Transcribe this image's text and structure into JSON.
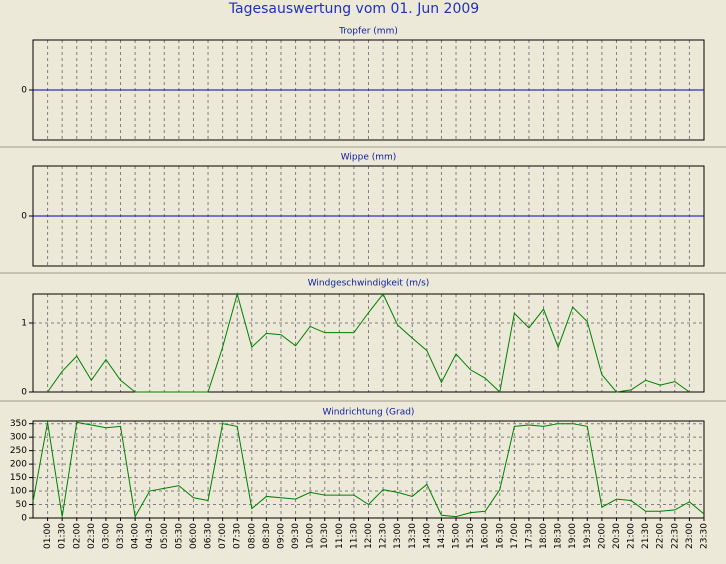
{
  "title": "Tagesauswertung vom 01. Jun 2009",
  "chart_data": [
    {
      "type": "line",
      "title": "Tropfer (mm)",
      "ylim": [
        -1,
        1
      ],
      "yticks": [
        0
      ],
      "grid": true,
      "series": [
        {
          "color": "#0000c8",
          "values": [
            0,
            0,
            0,
            0,
            0,
            0,
            0,
            0,
            0,
            0,
            0,
            0,
            0,
            0,
            0,
            0,
            0,
            0,
            0,
            0,
            0,
            0,
            0,
            0,
            0,
            0,
            0,
            0,
            0,
            0,
            0,
            0,
            0,
            0,
            0,
            0,
            0,
            0,
            0,
            0,
            0,
            0,
            0,
            0,
            0,
            0,
            0
          ]
        }
      ]
    },
    {
      "type": "line",
      "title": "Wippe (mm)",
      "ylim": [
        -1,
        1
      ],
      "yticks": [
        0
      ],
      "grid": true,
      "series": [
        {
          "color": "#0000c8",
          "values": [
            0,
            0,
            0,
            0,
            0,
            0,
            0,
            0,
            0,
            0,
            0,
            0,
            0,
            0,
            0,
            0,
            0,
            0,
            0,
            0,
            0,
            0,
            0,
            0,
            0,
            0,
            0,
            0,
            0,
            0,
            0,
            0,
            0,
            0,
            0,
            0,
            0,
            0,
            0,
            0,
            0,
            0,
            0,
            0,
            0,
            0,
            0
          ]
        }
      ]
    },
    {
      "type": "line",
      "title": "Windgeschwindigkeit (m/s)",
      "ylim": [
        0,
        1.42
      ],
      "yticks": [
        0,
        1
      ],
      "grid": true,
      "series": [
        {
          "color": "#008000",
          "values": [
            null,
            0,
            0.3,
            0.52,
            0.17,
            0.47,
            0.17,
            0,
            0,
            0,
            0,
            0,
            0,
            0.65,
            1.42,
            0.65,
            0.85,
            0.83,
            0.67,
            0.95,
            0.86,
            0.86,
            0.86,
            1.15,
            1.42,
            0.97,
            0.78,
            0.6,
            0.14,
            0.55,
            0.32,
            0.2,
            0,
            1.14,
            0.93,
            1.2,
            0.65,
            1.23,
            1.02,
            0.25,
            0,
            0.03,
            0.17,
            0.1,
            0.15,
            0,
            null
          ]
        }
      ]
    },
    {
      "type": "line",
      "title": "Windrichtung (Grad)",
      "ylim": [
        0,
        360
      ],
      "yticks": [
        0,
        50,
        100,
        150,
        200,
        250,
        300,
        350
      ],
      "grid": true,
      "categories": [
        null,
        "01:00",
        "01:30",
        "02:00",
        "02:30",
        "03:00",
        "03:30",
        "04:00",
        "04:30",
        "05:00",
        "05:30",
        "06:00",
        "06:30",
        "07:00",
        "07:30",
        "08:00",
        "08:30",
        "09:00",
        "09:30",
        "10:00",
        "10:30",
        "11:00",
        "11:30",
        "12:00",
        "12:30",
        "13:00",
        "13:30",
        "14:00",
        "14:30",
        "15:00",
        "15:30",
        "16:00",
        "16:30",
        "17:00",
        "17:30",
        "18:00",
        "18:30",
        "19:00",
        "19:30",
        "20:00",
        "20:30",
        "21:00",
        "21:30",
        "22:00",
        "22:30",
        "23:00",
        "23:30"
      ],
      "series": [
        {
          "color": "#008000",
          "values": [
            60,
            355,
            5,
            355,
            345,
            335,
            340,
            5,
            100,
            110,
            120,
            75,
            65,
            350,
            340,
            35,
            80,
            75,
            70,
            95,
            85,
            85,
            85,
            50,
            105,
            95,
            80,
            125,
            10,
            5,
            20,
            25,
            105,
            340,
            345,
            340,
            350,
            350,
            340,
            40,
            70,
            65,
            25,
            25,
            30,
            60,
            15
          ]
        }
      ]
    }
  ]
}
